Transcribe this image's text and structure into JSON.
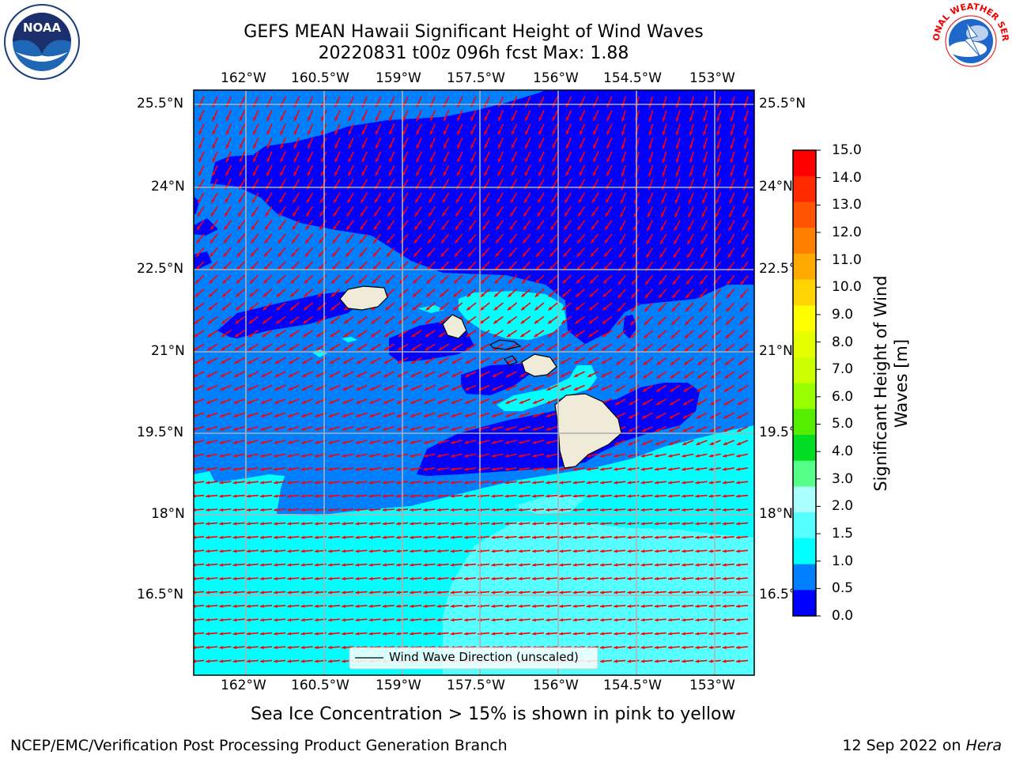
{
  "title_line1": "GEFS MEAN Hawaii Significant Height of Wind Waves",
  "title_line2": "20220831 t00z 096h fcst   Max: 1.88",
  "lon_ticks": [
    "162°W",
    "160.5°W",
    "159°W",
    "157.5°W",
    "156°W",
    "154.5°W",
    "153°W"
  ],
  "lat_ticks": [
    "25.5°N",
    "24°N",
    "22.5°N",
    "21°N",
    "19.5°N",
    "18°N",
    "16.5°N"
  ],
  "colorbar": {
    "label_line1": "Significant Height of Wind",
    "label_line2": "Waves [m]",
    "ticks": [
      "15.0",
      "14.0",
      "13.0",
      "12.0",
      "11.0",
      "10.0",
      "9.0",
      "8.0",
      "7.0",
      "6.0",
      "5.0",
      "4.0",
      "3.0",
      "2.0",
      "1.5",
      "1.0",
      "0.5",
      "0.0"
    ],
    "colors_top_to_bottom": [
      "#ff0000",
      "#ff2a00",
      "#ff5500",
      "#ff8000",
      "#ffaa00",
      "#ffd400",
      "#ffff00",
      "#e6ff00",
      "#ccff00",
      "#99ff00",
      "#55ee00",
      "#00dd22",
      "#55ff88",
      "#aaffff",
      "#55ffff",
      "#00ffff",
      "#0080ff",
      "#0000ff"
    ]
  },
  "legend_text": "Wind Wave Direction (unscaled)",
  "sea_ice_note": "Sea Ice Concentration > 15% is shown in pink to yellow",
  "footer_left": "NCEP/EMC/Verification Post Processing Product Generation Branch",
  "footer_date": "12 Sep 2022 on ",
  "footer_machine": "Hera",
  "logos": {
    "left": "NOAA",
    "right": "NATIONAL WEATHER SERVICE"
  },
  "colors": {
    "arrow": "#ff0000",
    "land": "#f0ead8",
    "grid": "#b0b0b0"
  }
}
